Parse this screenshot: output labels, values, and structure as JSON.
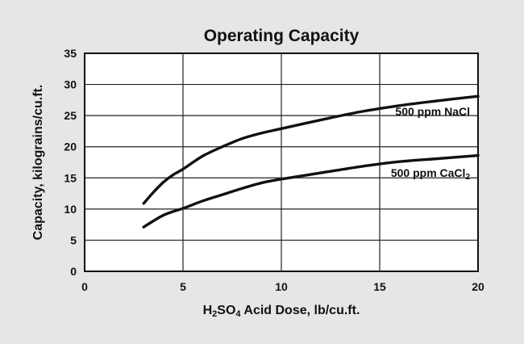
{
  "chart_data": {
    "type": "line",
    "title": "Operating Capacity",
    "xlabel": {
      "prefix": "H",
      "sub1": "2",
      "mid": "SO",
      "sub2": "4",
      "suffix": " Acid Dose, lb/cu.ft."
    },
    "ylabel": "Capacity, kilograins/cu.ft.",
    "xlim": [
      0,
      20
    ],
    "ylim": [
      0,
      35
    ],
    "xticks": [
      "0",
      "5",
      "10",
      "15",
      "20"
    ],
    "yticks": [
      "0",
      "5",
      "10",
      "15",
      "20",
      "25",
      "30",
      "35"
    ],
    "grid": true,
    "series": [
      {
        "name": "500 ppm NaCl",
        "label_main": "500 ppm NaCl",
        "label_sub": "",
        "x": [
          3,
          3.5,
          4,
          4.5,
          5,
          6,
          7,
          8,
          9,
          10,
          12,
          14,
          16,
          18,
          20
        ],
        "y": [
          10.9,
          12.7,
          14.3,
          15.5,
          16.4,
          18.5,
          20.0,
          21.3,
          22.2,
          22.9,
          24.3,
          25.6,
          26.6,
          27.4,
          28.1
        ]
      },
      {
        "name": "500 ppm CaCl2",
        "label_main": "500 ppm CaCl",
        "label_sub": "2",
        "x": [
          3,
          3.5,
          4,
          4.5,
          5,
          6,
          7,
          8,
          9,
          10,
          12,
          14,
          16,
          18,
          20
        ],
        "y": [
          7.1,
          8.1,
          9.0,
          9.6,
          10.1,
          11.3,
          12.3,
          13.3,
          14.2,
          14.8,
          15.8,
          16.8,
          17.6,
          18.1,
          18.6
        ]
      }
    ]
  }
}
